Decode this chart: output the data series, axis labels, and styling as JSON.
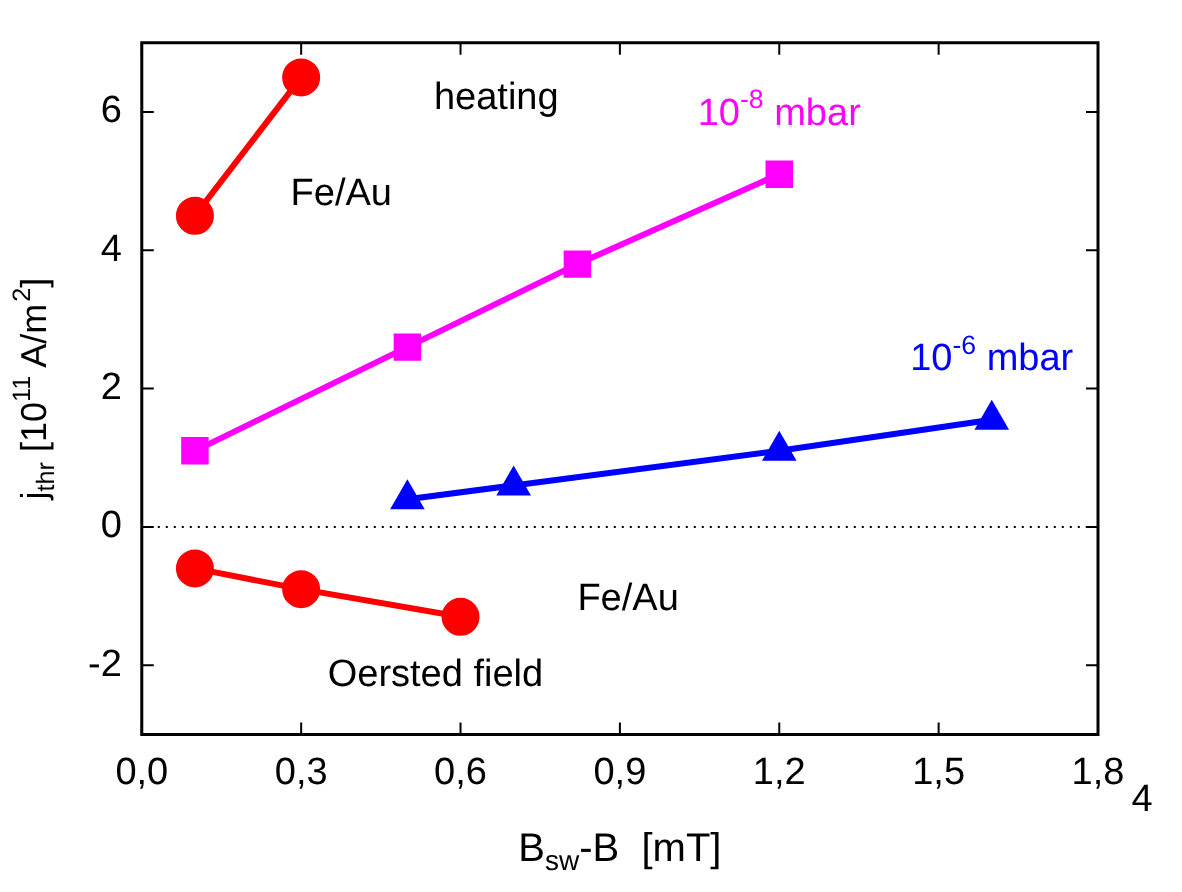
{
  "chart_data": {
    "type": "line",
    "xlabel": "B$_{sw}$-B  [mT]",
    "ylabel": "j$_{thr}$ [10$^{11}$ A/m$^{2}$]",
    "xlim": [
      0,
      1.8
    ],
    "xticks": [
      {
        "value": 0,
        "label": "0,0"
      },
      {
        "value": 0.3,
        "label": "0,3"
      },
      {
        "value": 0.6,
        "label": "0,6"
      },
      {
        "value": 0.9,
        "label": "0,9"
      },
      {
        "value": 1.2,
        "label": "1,2"
      },
      {
        "value": 1.5,
        "label": "1,5"
      },
      {
        "value": 1.8,
        "label": "1,8"
      }
    ],
    "ylim": [
      -3,
      7
    ],
    "yticks": [
      -2,
      0,
      2,
      4,
      6
    ],
    "grid": false,
    "legend": false,
    "series": [
      {
        "color": "#ff0000",
        "marker": "circle",
        "x": [
          0.1,
          0.3
        ],
        "values": [
          4.5,
          6.5
        ]
      },
      {
        "name": "10$^{-8}$ mbar",
        "color": "#ff00ff",
        "marker": "square",
        "x": [
          0.1,
          0.5,
          0.82,
          1.2
        ],
        "values": [
          1.1,
          2.6,
          3.8,
          5.1
        ]
      },
      {
        "name": "10$^{-6}$ mbar",
        "color": "#0000ff",
        "marker": "triangle",
        "x": [
          0.5,
          0.7,
          1.2,
          1.6
        ],
        "values": [
          0.4,
          0.6,
          1.1,
          1.55
        ]
      },
      {
        "color": "#ff0000",
        "marker": "circle",
        "x": [
          0.1,
          0.3,
          0.6
        ],
        "values": [
          -0.6,
          -0.9,
          -1.3
        ]
      }
    ],
    "ref_lines": [
      {
        "axis": "y",
        "value": 0,
        "color": "#000000",
        "line_style": "dotted"
      }
    ],
    "annotations": [
      "heating",
      "Fe/Au",
      "Fe/Au",
      "Oersted field",
      "4"
    ]
  }
}
